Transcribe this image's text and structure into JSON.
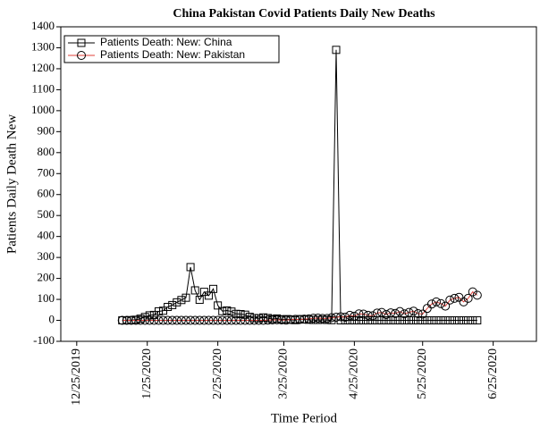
{
  "chart_data": {
    "type": "line",
    "title": "China Pakistan Covid Patients Daily New Deaths",
    "x_label": "Time Period",
    "y_label": "Patients Daily Death New",
    "x": [
      "1/14/2020",
      "1/16/2020",
      "1/18/2020",
      "1/20/2020",
      "1/22/2020",
      "1/24/2020",
      "1/26/2020",
      "1/28/2020",
      "1/30/2020",
      "2/1/2020",
      "2/3/2020",
      "2/5/2020",
      "2/7/2020",
      "2/9/2020",
      "2/11/2020",
      "2/13/2020",
      "2/15/2020",
      "2/17/2020",
      "2/19/2020",
      "2/21/2020",
      "2/23/2020",
      "2/25/2020",
      "2/27/2020",
      "2/29/2020",
      "3/2/2020",
      "3/4/2020",
      "3/6/2020",
      "3/8/2020",
      "3/10/2020",
      "3/12/2020",
      "3/14/2020",
      "3/16/2020",
      "3/18/2020",
      "3/20/2020",
      "3/22/2020",
      "3/24/2020",
      "3/26/2020",
      "3/28/2020",
      "3/30/2020",
      "4/1/2020",
      "4/3/2020",
      "4/5/2020",
      "4/7/2020",
      "4/9/2020",
      "4/11/2020",
      "4/13/2020",
      "4/15/2020",
      "4/17/2020",
      "4/19/2020",
      "4/21/2020",
      "4/23/2020",
      "4/25/2020",
      "4/27/2020",
      "4/29/2020",
      "5/1/2020",
      "5/3/2020",
      "5/5/2020",
      "5/7/2020",
      "5/9/2020",
      "5/11/2020",
      "5/13/2020",
      "5/15/2020",
      "5/17/2020",
      "5/19/2020",
      "5/21/2020",
      "5/23/2020",
      "5/25/2020",
      "5/27/2020",
      "5/29/2020",
      "5/31/2020",
      "6/2/2020",
      "6/4/2020",
      "6/6/2020",
      "6/8/2020",
      "6/10/2020",
      "6/12/2020",
      "6/14/2020",
      "6/16/2020",
      "6/18/2020"
    ],
    "series": [
      {
        "name": "Patients Death: New: China",
        "color": "#000000",
        "marker": "square",
        "values": [
          0,
          0,
          1,
          3,
          8,
          16,
          24,
          26,
          43,
          46,
          64,
          73,
          86,
          97,
          108,
          254,
          143,
          98,
          136,
          118,
          150,
          71,
          44,
          47,
          42,
          31,
          30,
          27,
          17,
          11,
          10,
          14,
          11,
          6,
          9,
          4,
          6,
          3,
          1,
          6,
          4,
          3,
          2,
          2,
          3,
          2,
          1,
          1290,
          0,
          0,
          0,
          0,
          0,
          0,
          0,
          0,
          0,
          0,
          0,
          0,
          0,
          0,
          0,
          0,
          0,
          0,
          0,
          0,
          0,
          0,
          0,
          0,
          0,
          0,
          0,
          0,
          0,
          0,
          0
        ]
      },
      {
        "name": "Patients Death: New: Pakistan",
        "color": "#e0403a",
        "marker": "circle",
        "values": [
          0,
          0,
          0,
          0,
          0,
          0,
          0,
          0,
          0,
          0,
          0,
          0,
          0,
          0,
          0,
          0,
          0,
          0,
          0,
          0,
          0,
          0,
          0,
          0,
          0,
          0,
          0,
          0,
          0,
          0,
          0,
          0,
          1,
          2,
          3,
          2,
          1,
          4,
          5,
          4,
          6,
          7,
          10,
          11,
          9,
          9,
          13,
          15,
          17,
          15,
          24,
          20,
          31,
          30,
          24,
          22,
          35,
          38,
          28,
          36,
          33,
          42,
          31,
          38,
          44,
          32,
          30,
          57,
          78,
          88,
          80,
          68,
          97,
          105,
          110,
          88,
          105,
          136,
          120
        ]
      }
    ],
    "xlim": [
      "12/18/2019",
      "7/14/2020"
    ],
    "xticks": [
      "12/25/2019",
      "1/25/2020",
      "2/25/2020",
      "3/25/2020",
      "4/25/2020",
      "5/25/2020",
      "6/25/2020"
    ],
    "ylim": [
      -100,
      1400
    ],
    "yticks": [
      -100,
      0,
      100,
      200,
      300,
      400,
      500,
      600,
      700,
      800,
      900,
      1000,
      1100,
      1200,
      1300,
      1400
    ],
    "legend": "upper left"
  }
}
